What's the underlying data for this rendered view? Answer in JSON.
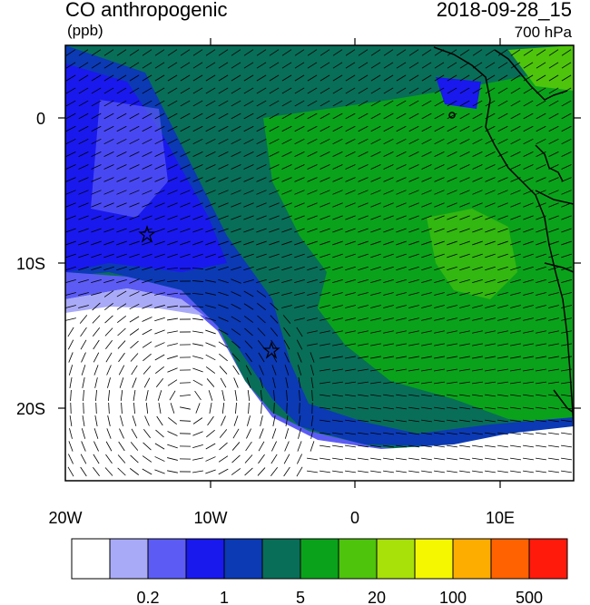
{
  "header": {
    "title": "CO anthropogenic",
    "units": "(ppb)",
    "datetime": "2018-09-28_15",
    "level": "700 hPa"
  },
  "axes": {
    "x_ticks": [
      "20W",
      "10W",
      "0",
      "10E"
    ],
    "y_ticks": [
      "0",
      "10S",
      "20S"
    ]
  },
  "colorbar": {
    "colors": [
      "#ffffff",
      "#a9aaf7",
      "#5c5cf5",
      "#1919ee",
      "#0b3ab4",
      "#086e58",
      "#0aa21b",
      "#4ec40c",
      "#a8e00a",
      "#f4f700",
      "#fdad00",
      "#ff6200",
      "#ff1a0c"
    ],
    "labels": [
      "0.2",
      "1",
      "5",
      "20",
      "100",
      "500"
    ]
  },
  "colors": {
    "frame": "#000000",
    "coast": "#000000"
  }
}
